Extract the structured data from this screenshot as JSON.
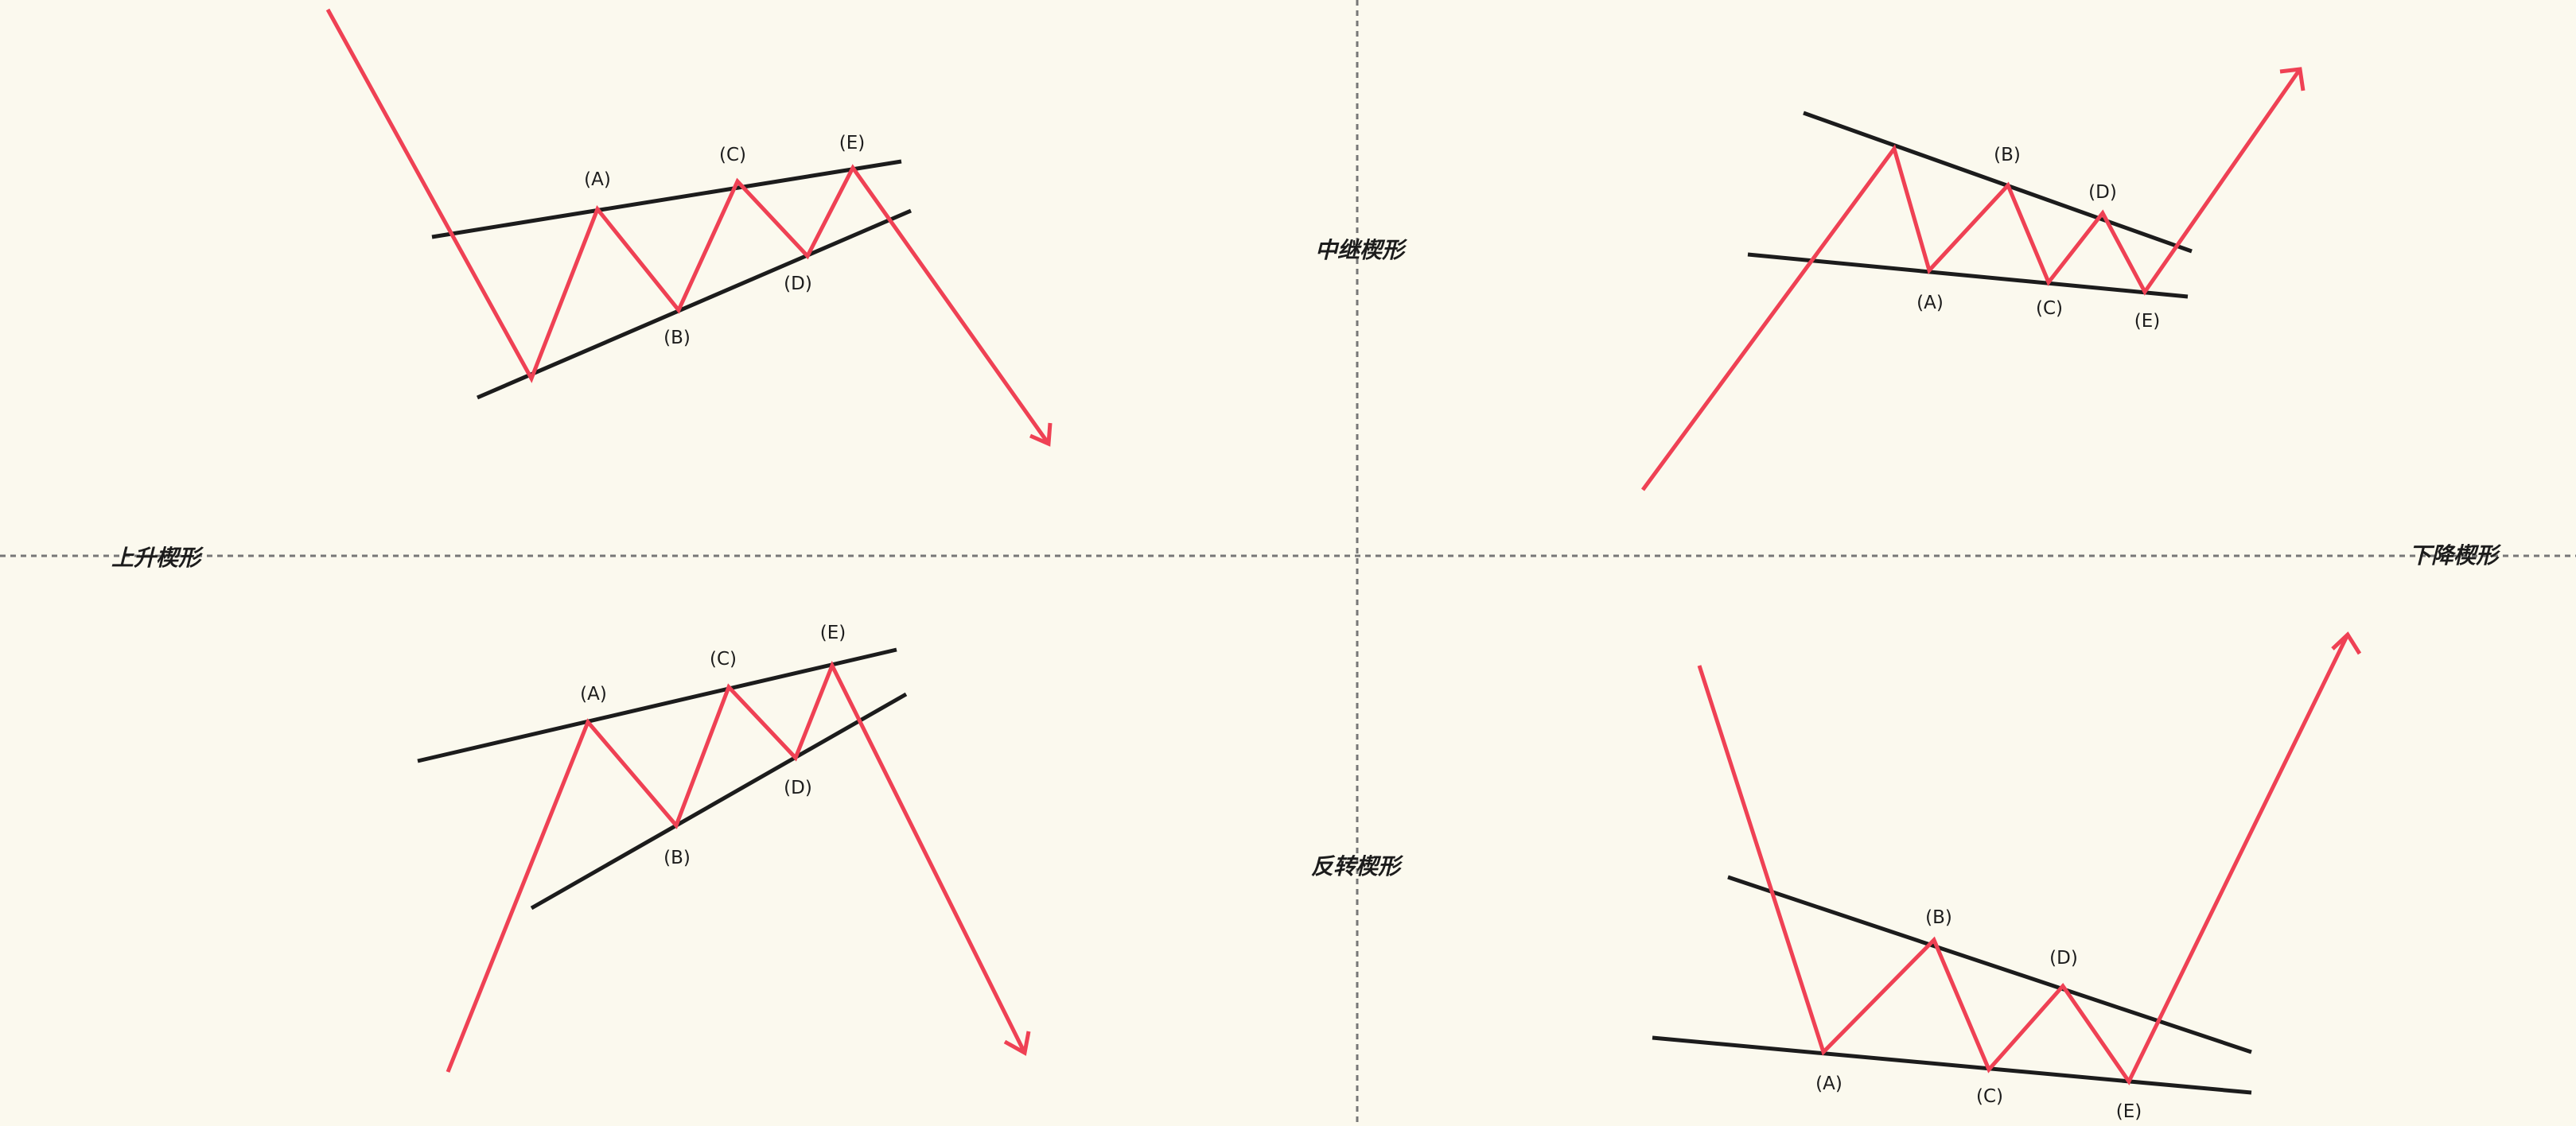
{
  "colors": {
    "background": "#fbf9ee",
    "boundary": "#1c1c1c",
    "wave": "#ef4154",
    "divider": "#777777",
    "text": "#1c1c1c"
  },
  "labels": {
    "continuation_wedge": "中继楔形",
    "reversal_wedge": "反转楔形",
    "rising_wedge": "上升楔形",
    "falling_wedge": "下降楔形"
  },
  "points": {
    "a": "(A)",
    "b": "(B)",
    "c": "(C)",
    "d": "(D)",
    "e": "(E)"
  }
}
